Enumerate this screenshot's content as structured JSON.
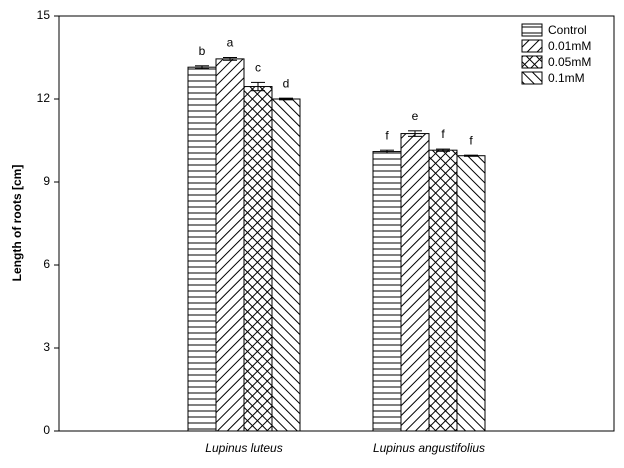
{
  "chart_data": {
    "type": "bar",
    "ylabel": "Length of roots [cm]",
    "categories": [
      "Lupinus luteus",
      "Lupinus angustifolius"
    ],
    "series": [
      {
        "name": "Control",
        "color": "#000000",
        "pattern": "horizontal",
        "values": [
          13.15,
          10.1
        ],
        "errors": [
          0.05,
          0.05
        ],
        "annotations": [
          "b",
          "f"
        ]
      },
      {
        "name": "0.01mM",
        "color": "#000000",
        "pattern": "forward-diagonal",
        "values": [
          13.45,
          10.75
        ],
        "errors": [
          0.05,
          0.1
        ],
        "annotations": [
          "a",
          "e"
        ]
      },
      {
        "name": "0.05mM",
        "color": "#000000",
        "pattern": "crosshatch",
        "values": [
          12.45,
          10.15
        ],
        "errors": [
          0.15,
          0.04
        ],
        "annotations": [
          "c",
          "f"
        ]
      },
      {
        "name": "0.1mM",
        "color": "#000000",
        "pattern": "backward-diagonal",
        "values": [
          12.0,
          9.95
        ],
        "errors": [
          0.03,
          0.02
        ],
        "annotations": [
          "d",
          "f"
        ]
      }
    ],
    "ylim": [
      0,
      15
    ],
    "yticks": [
      0,
      3,
      6,
      9,
      12,
      15
    ],
    "grid": false,
    "legend": "upper right"
  }
}
